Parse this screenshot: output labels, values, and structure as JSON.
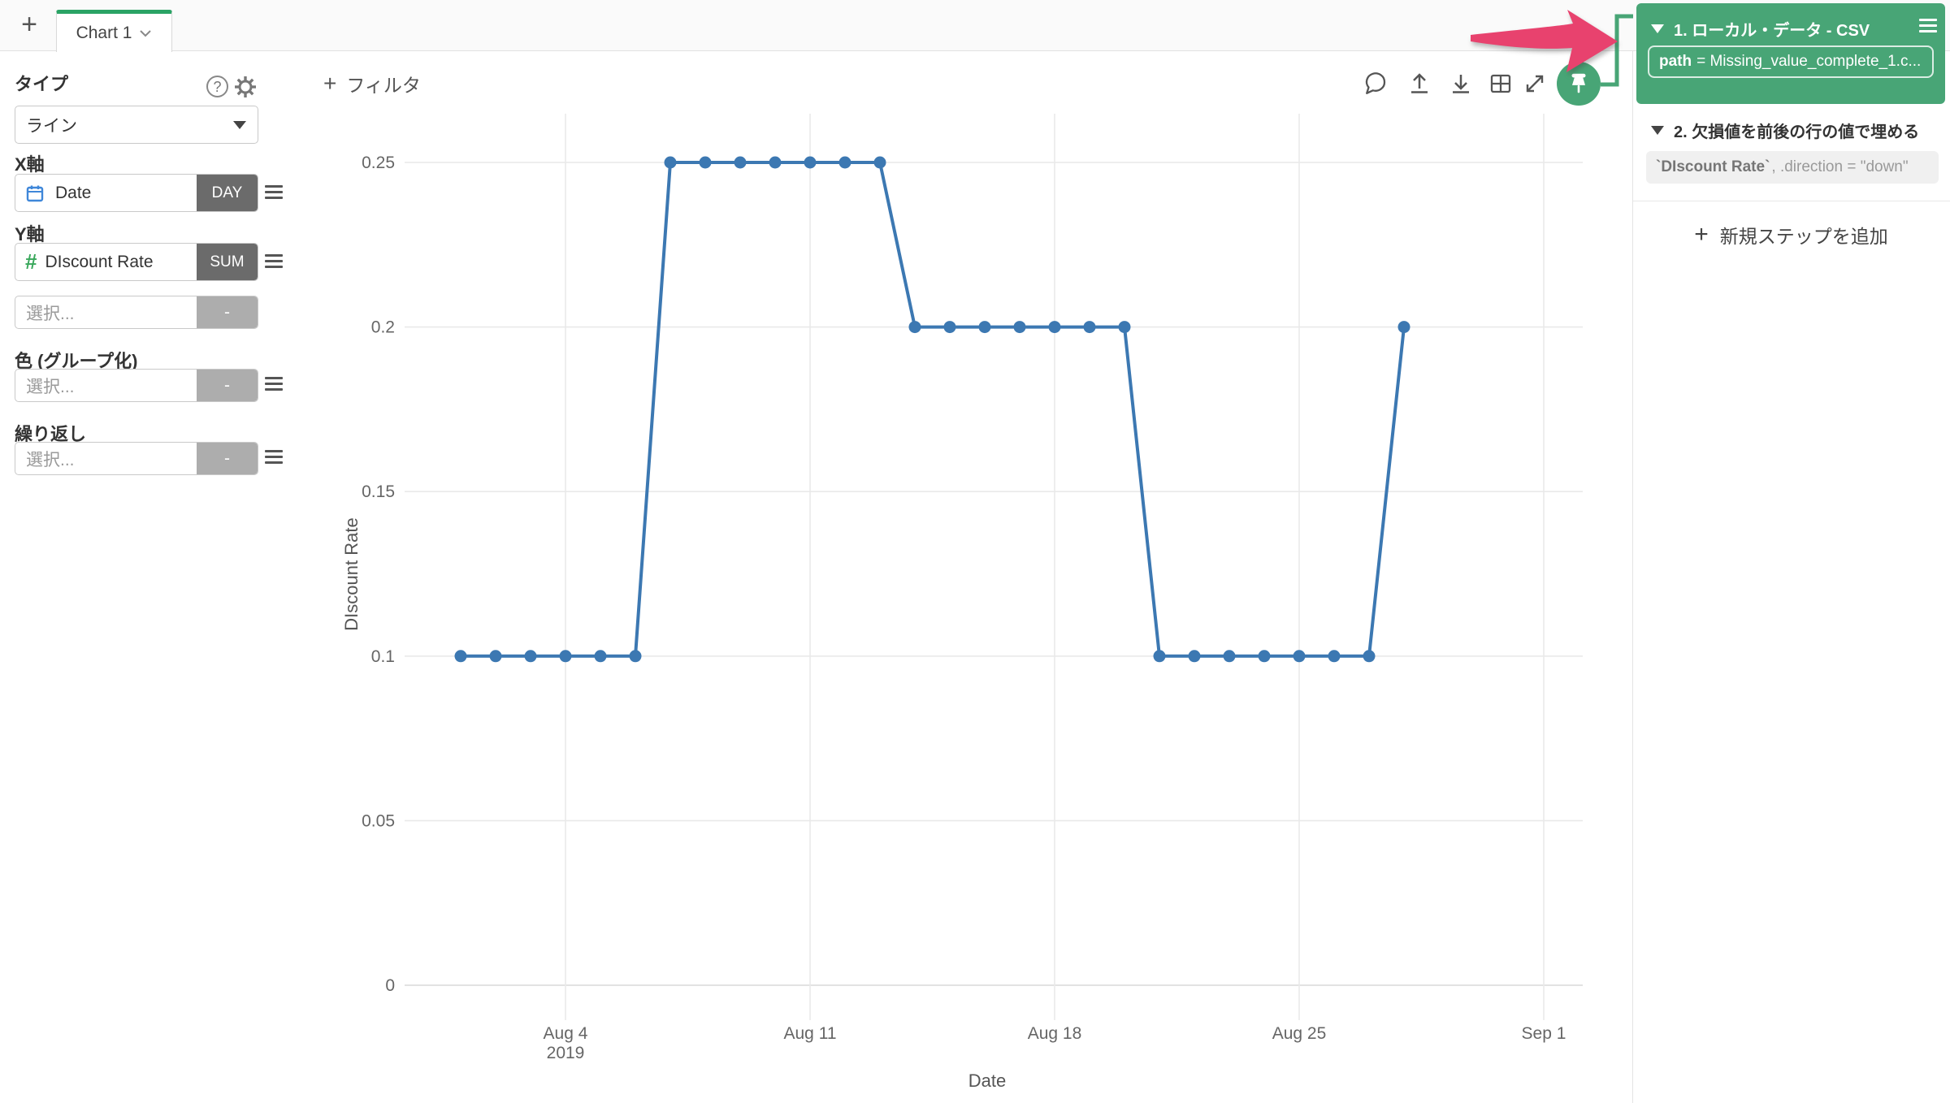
{
  "topbar": {
    "new_tab_label": "+",
    "tab": {
      "label": "Chart 1"
    }
  },
  "sidebar": {
    "type": {
      "label": "タイプ",
      "value": "ライン"
    },
    "x_axis": {
      "label": "X軸",
      "field": "Date",
      "agg": "DAY"
    },
    "y_axis": {
      "label": "Y軸",
      "field": "DIscount Rate",
      "agg": "SUM"
    },
    "y_axis_secondary": {
      "placeholder": "選択...",
      "agg": "-"
    },
    "color": {
      "label": "色 (グループ化)",
      "placeholder": "選択...",
      "agg": "-"
    },
    "repeat": {
      "label": "繰り返し",
      "placeholder": "選択...",
      "agg": "-"
    }
  },
  "toolbar": {
    "filter_label": "フィルタ",
    "filter_plus": "+",
    "icons": [
      "comment",
      "upload",
      "download",
      "table",
      "expand",
      "pin"
    ]
  },
  "steps_panel": {
    "step1": {
      "index_title": "1. ローカル・データ - CSV",
      "param_key": "path",
      "param_rest": "= Missing_value_complete_1.c..."
    },
    "step2": {
      "index_title": "2. 欠損値を前後の行の値で埋める",
      "code_field": "`DIscount Rate`",
      "code_rest": ", .direction = \"down\""
    },
    "add_step_label": "新規ステップを追加",
    "add_step_plus": "+"
  },
  "chart_data": {
    "type": "line",
    "title": "",
    "xlabel": "Date",
    "ylabel": "DIscount Rate",
    "x": [
      "Aug 1",
      "Aug 2",
      "Aug 3",
      "Aug 4",
      "Aug 5",
      "Aug 6",
      "Aug 7",
      "Aug 8",
      "Aug 9",
      "Aug 10",
      "Aug 11",
      "Aug 12",
      "Aug 13",
      "Aug 14",
      "Aug 15",
      "Aug 16",
      "Aug 17",
      "Aug 18",
      "Aug 19",
      "Aug 20",
      "Aug 21",
      "Aug 22",
      "Aug 23",
      "Aug 24",
      "Aug 25",
      "Aug 26",
      "Aug 27",
      "Aug 28"
    ],
    "x_days": [
      1,
      2,
      3,
      4,
      5,
      6,
      7,
      8,
      9,
      10,
      11,
      12,
      13,
      14,
      15,
      16,
      17,
      18,
      19,
      20,
      21,
      22,
      23,
      24,
      25,
      26,
      27,
      28
    ],
    "series": [
      {
        "name": "Discount Rate (SUM)",
        "color": "#3c78b2",
        "values": [
          0.1,
          0.1,
          0.1,
          0.1,
          0.1,
          0.1,
          0.25,
          0.25,
          0.25,
          0.25,
          0.25,
          0.25,
          0.25,
          0.2,
          0.2,
          0.2,
          0.2,
          0.2,
          0.2,
          0.2,
          0.1,
          0.1,
          0.1,
          0.1,
          0.1,
          0.1,
          0.1,
          0.2
        ]
      }
    ],
    "year_sublabel": "2019",
    "xticks": [
      {
        "label": "Aug 4",
        "sublabel": "2019",
        "day": 4
      },
      {
        "label": "Aug 11",
        "day": 11
      },
      {
        "label": "Aug 18",
        "day": 18
      },
      {
        "label": "Aug 25",
        "day": 25
      },
      {
        "label": "Sep 1",
        "day": 32
      }
    ],
    "yticks": [
      {
        "label": "0",
        "value": 0
      },
      {
        "label": "0.05",
        "value": 0.05
      },
      {
        "label": "0.1",
        "value": 0.1
      },
      {
        "label": "0.15",
        "value": 0.15
      },
      {
        "label": "0.2",
        "value": 0.2
      },
      {
        "label": "0.25",
        "value": 0.25
      }
    ],
    "ylim": [
      0,
      0.26
    ],
    "grid": true,
    "legend": "none"
  },
  "colors": {
    "green": "#48a576",
    "tab-green": "#2aa365",
    "blue": "#3c78b2",
    "pink": "#e8426e",
    "badge-dark": "#6b6b6b",
    "badge-light": "#adadad"
  }
}
